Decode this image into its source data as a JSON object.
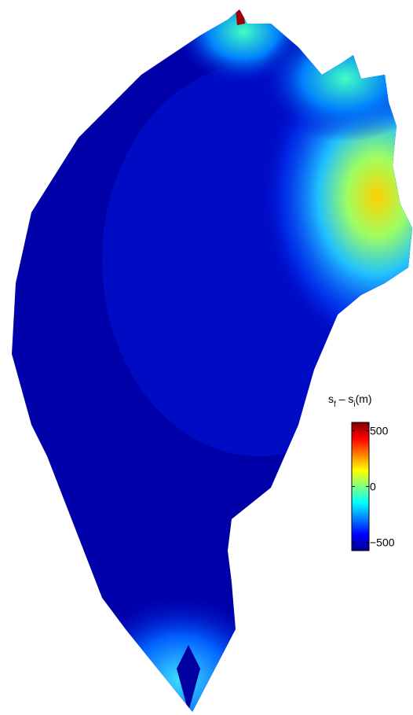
{
  "colorbar": {
    "label": [
      "s",
      "f",
      " – s",
      "i",
      "(m)"
    ],
    "colormap": "jet",
    "clim": [
      -575,
      575
    ],
    "ticks": [
      500,
      0,
      {
        "value": -500,
        "label": "−500"
      }
    ]
  }
}
